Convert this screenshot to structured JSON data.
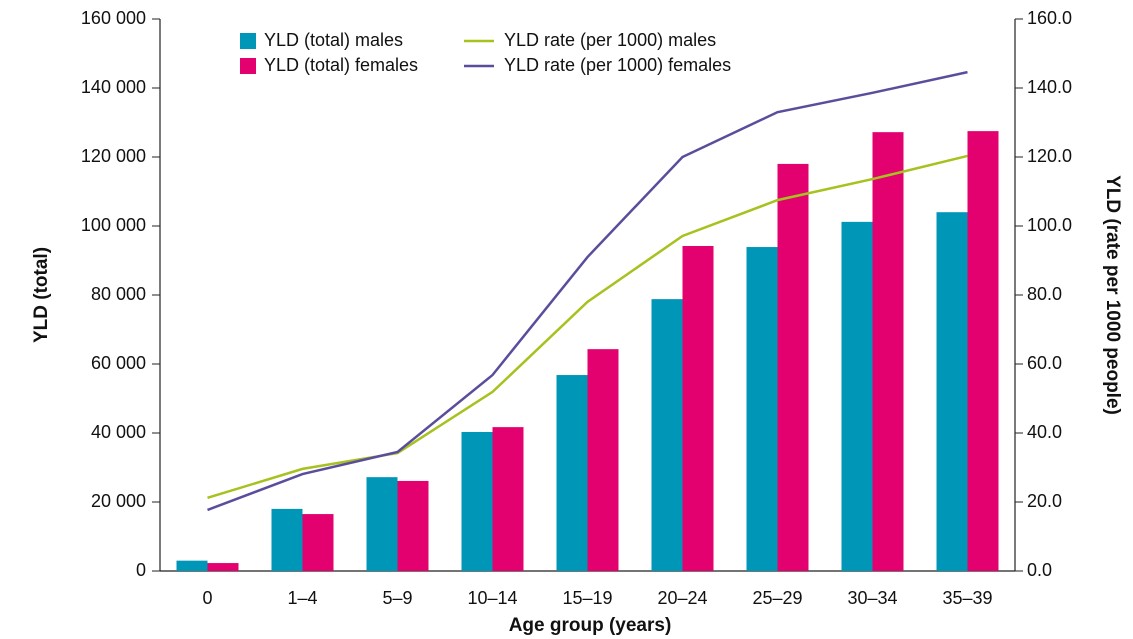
{
  "chart_data": {
    "type": "bar-line",
    "x_label": "Age group (years)",
    "y_label": "YLD (total)",
    "y2_label": "YLD (rate per 1000 people)",
    "categories": [
      "0",
      "1–4",
      "5–9",
      "10–14",
      "15–19",
      "20–24",
      "25–29",
      "30–34",
      "35–39"
    ],
    "series": [
      {
        "name": "YLD (total) males",
        "type": "bar",
        "color": "#0096b8",
        "values": [
          3000,
          18000,
          27200,
          40300,
          56800,
          78800,
          93900,
          101200,
          104000
        ]
      },
      {
        "name": "YLD (total) females",
        "type": "bar",
        "color": "#e3006f",
        "values": [
          2300,
          16500,
          26100,
          41700,
          64300,
          94200,
          118000,
          127200,
          127500
        ]
      },
      {
        "name": "YLD rate (per 1000) males",
        "type": "line",
        "axis": "y2",
        "color": "#a5c21f",
        "values": [
          21.2,
          29.6,
          34.2,
          51.9,
          78.0,
          97.1,
          107.5,
          113.6,
          120.3
        ]
      },
      {
        "name": "YLD rate (per 1000) females",
        "type": "line",
        "axis": "y2",
        "color": "#5a4e9c",
        "values": [
          17.7,
          28.1,
          34.5,
          56.8,
          91.0,
          120.0,
          133.0,
          138.6,
          144.6
        ]
      }
    ],
    "ylim": [
      0,
      160000
    ],
    "yticks": [
      0,
      {
        "value": 20000,
        "label": "20 000"
      },
      {
        "value": 40000,
        "label": "40 000"
      },
      {
        "value": 60000,
        "label": "60 000"
      },
      {
        "value": 80000,
        "label": "80 000"
      },
      {
        "value": 100000,
        "label": "100 000"
      },
      {
        "value": 120000,
        "label": "120 000"
      },
      {
        "value": 140000,
        "label": "140 000"
      },
      {
        "value": 160000,
        "label": "160 000"
      }
    ],
    "y2lim": [
      0,
      160
    ],
    "y2ticks": [
      {
        "value": 0,
        "label": "0.0"
      },
      {
        "value": 20,
        "label": "20.0"
      },
      {
        "value": 40,
        "label": "40.0"
      },
      {
        "value": 60,
        "label": "60.0"
      },
      {
        "value": 80,
        "label": "80.0"
      },
      {
        "value": 100,
        "label": "100.0"
      },
      {
        "value": 120,
        "label": "120.0"
      },
      {
        "value": 140,
        "label": "140.0"
      },
      {
        "value": 160,
        "label": "160.0"
      }
    ],
    "grid": false,
    "legend": "top"
  }
}
